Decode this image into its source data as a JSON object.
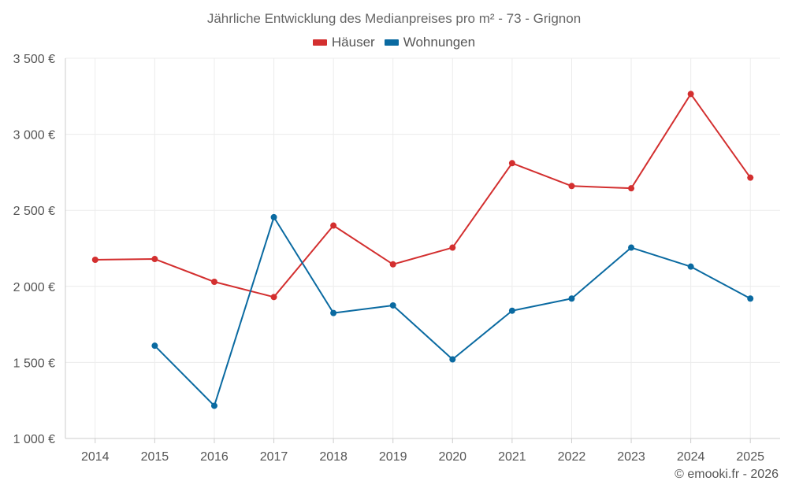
{
  "chart_data": {
    "type": "line",
    "title": "Jährliche Entwicklung des Medianpreises pro m² - 73 - Grignon",
    "xlabel": "",
    "ylabel": "",
    "categories": [
      "2014",
      "2015",
      "2016",
      "2017",
      "2018",
      "2019",
      "2020",
      "2021",
      "2022",
      "2023",
      "2024",
      "2025"
    ],
    "ylim": [
      1000,
      3500
    ],
    "yticks": [
      1000,
      1500,
      2000,
      2500,
      3000,
      3500
    ],
    "ytick_labels": [
      "1 000 €",
      "1 500 €",
      "2 000 €",
      "2 500 €",
      "3 000 €",
      "3 500 €"
    ],
    "grid": true,
    "legend_position": "top-center",
    "series": [
      {
        "name": "Häuser",
        "color": "#d32f2f",
        "values": [
          2175,
          2180,
          2030,
          1930,
          2400,
          2145,
          2255,
          2810,
          2660,
          2645,
          3265,
          2715
        ]
      },
      {
        "name": "Wohnungen",
        "color": "#0a6aa1",
        "values": [
          null,
          1610,
          1215,
          2455,
          1825,
          1875,
          1520,
          1840,
          1920,
          2255,
          2130,
          1920
        ]
      }
    ]
  },
  "footer": {
    "copyright": "© emooki.fr - 2026"
  }
}
